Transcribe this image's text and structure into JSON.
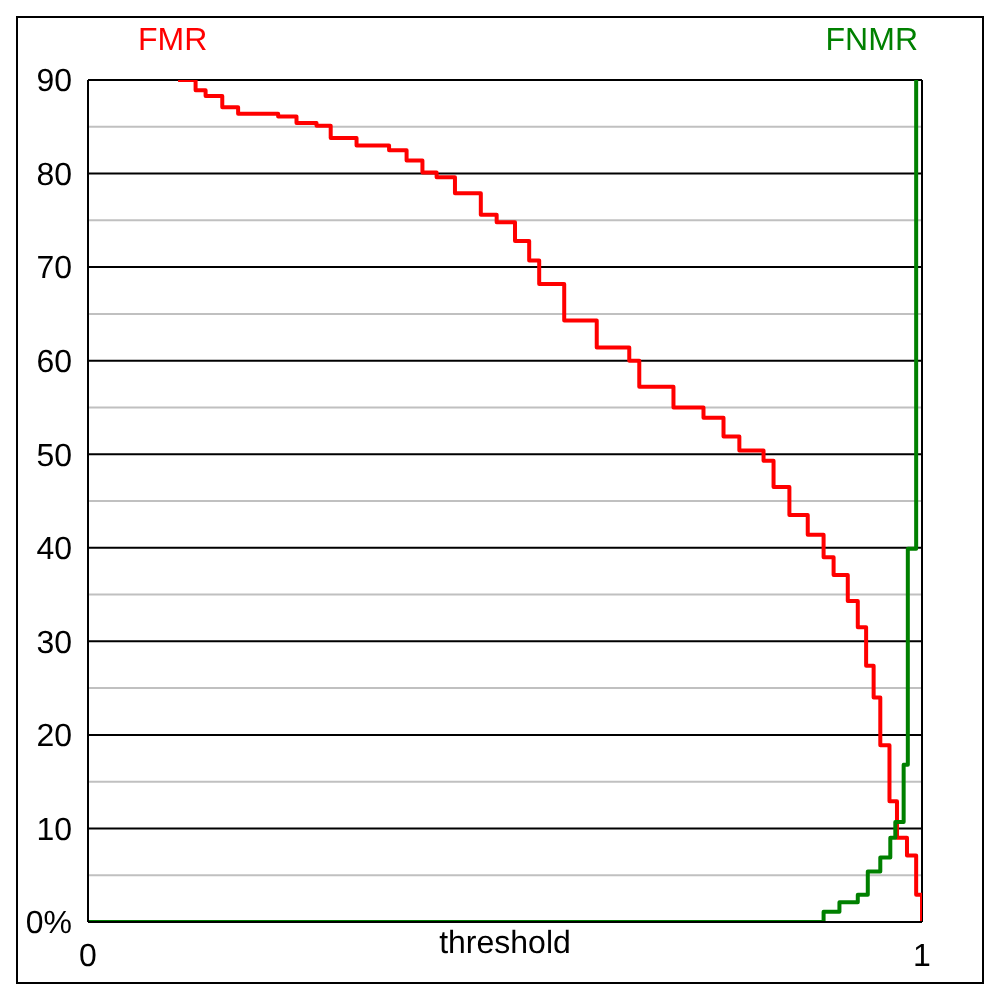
{
  "chart_data": {
    "type": "step",
    "xlabel": "threshold",
    "xlim": [
      0,
      1
    ],
    "xticks": [
      {
        "value": 0,
        "label": "0"
      },
      {
        "value": 1,
        "label": "1"
      }
    ],
    "ylim": [
      0,
      90
    ],
    "yticks": [
      {
        "value": 0,
        "label": "0%"
      },
      {
        "value": 5,
        "label": null
      },
      {
        "value": 10,
        "label": "10"
      },
      {
        "value": 15,
        "label": null
      },
      {
        "value": 20,
        "label": "20"
      },
      {
        "value": 25,
        "label": null
      },
      {
        "value": 30,
        "label": "30"
      },
      {
        "value": 35,
        "label": null
      },
      {
        "value": 40,
        "label": "40"
      },
      {
        "value": 45,
        "label": null
      },
      {
        "value": 50,
        "label": "50"
      },
      {
        "value": 55,
        "label": null
      },
      {
        "value": 60,
        "label": "60"
      },
      {
        "value": 65,
        "label": null
      },
      {
        "value": 70,
        "label": "70"
      },
      {
        "value": 75,
        "label": null
      },
      {
        "value": 80,
        "label": "80"
      },
      {
        "value": 85,
        "label": null
      },
      {
        "value": 90,
        "label": "90"
      }
    ],
    "grid": "y",
    "series": [
      {
        "name": "FMR",
        "color": "#ff0000",
        "x": [
          0.108,
          0.129,
          0.141,
          0.161,
          0.18,
          0.228,
          0.25,
          0.274,
          0.291,
          0.322,
          0.361,
          0.382,
          0.401,
          0.418,
          0.44,
          0.471,
          0.49,
          0.512,
          0.529,
          0.541,
          0.571,
          0.61,
          0.649,
          0.661,
          0.702,
          0.738,
          0.762,
          0.781,
          0.81,
          0.822,
          0.841,
          0.863,
          0.882,
          0.894,
          0.911,
          0.923,
          0.933,
          0.942,
          0.95,
          0.961,
          0.97,
          0.982,
          0.993,
          1
        ],
        "values": [
          90,
          88.9,
          88.3,
          87.1,
          86.4,
          86.1,
          85.4,
          85.1,
          83.8,
          83,
          82.5,
          81.4,
          80.1,
          79.6,
          77.9,
          75.6,
          74.8,
          72.8,
          70.7,
          68.2,
          64.3,
          61.4,
          60,
          57.2,
          55,
          53.9,
          51.9,
          50.4,
          49.3,
          46.5,
          43.5,
          41.4,
          39,
          37.1,
          34.3,
          31.5,
          27.4,
          24,
          18.9,
          12.9,
          9,
          7.1,
          2.9,
          0
        ]
      },
      {
        "name": "FNMR",
        "color": "#008000",
        "x": [
          0,
          0.87,
          0.882,
          0.901,
          0.923,
          0.935,
          0.95,
          0.962,
          0.968,
          0.978,
          0.983,
          0.993
        ],
        "values": [
          0,
          0,
          1.1,
          2.1,
          2.9,
          5.4,
          6.9,
          9,
          10.7,
          16.8,
          39.9,
          90
        ]
      }
    ]
  }
}
